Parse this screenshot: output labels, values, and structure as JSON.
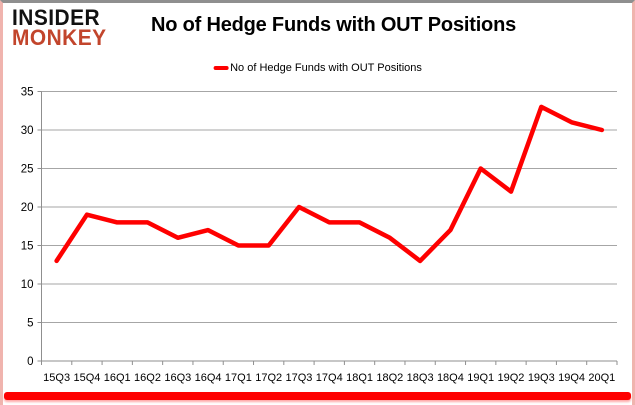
{
  "logo": {
    "line1": "INSIDER",
    "line2": "MONKEY"
  },
  "title": "No of Hedge Funds with OUT Positions",
  "legend": {
    "label": "No of Hedge Funds with OUT Positions"
  },
  "colors": {
    "line": "#fe0000",
    "logo_black": "#111111",
    "logo_red": "#c2452c",
    "gridline": "#a6a6a6",
    "axis": "#8f8f8f",
    "bottom_bar": "#fe0000",
    "side_border": "#f0b4ae"
  },
  "chart_data": {
    "type": "line",
    "title": "No of Hedge Funds with OUT Positions",
    "categories": [
      "15Q3",
      "15Q4",
      "16Q1",
      "16Q2",
      "16Q3",
      "16Q4",
      "17Q1",
      "17Q2",
      "17Q3",
      "17Q4",
      "18Q1",
      "18Q2",
      "18Q3",
      "18Q4",
      "19Q1",
      "19Q2",
      "19Q3",
      "19Q4",
      "20Q1"
    ],
    "series": [
      {
        "name": "No of Hedge Funds with OUT Positions",
        "color": "#fe0000",
        "values": [
          13,
          19,
          18,
          18,
          16,
          17,
          15,
          15,
          20,
          18,
          18,
          16,
          13,
          17,
          25,
          22,
          33,
          31,
          30
        ]
      }
    ],
    "xlabel": "",
    "ylabel": "",
    "ylim": [
      0,
      35
    ],
    "ytick_step": 5,
    "yticks": [
      0,
      5,
      10,
      15,
      20,
      25,
      30,
      35
    ],
    "grid": true,
    "legend_position": "top-center"
  }
}
